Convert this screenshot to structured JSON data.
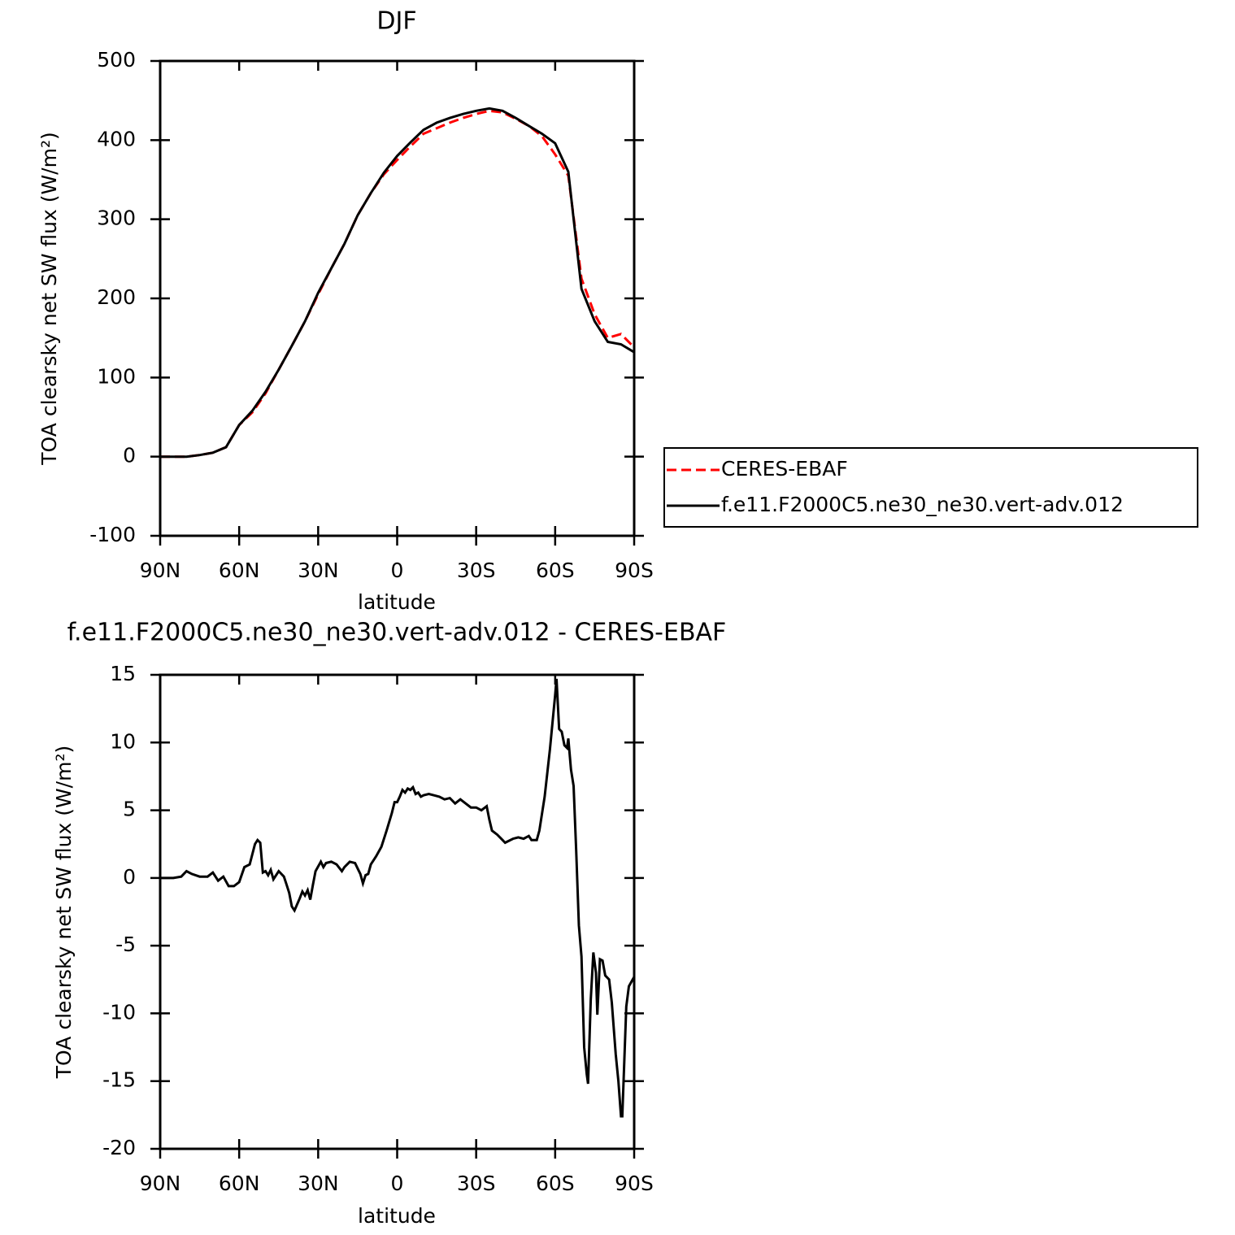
{
  "chart_data": [
    {
      "type": "line",
      "title": "DJF",
      "xlabel": "latitude",
      "ylabel": "TOA clearsky net SW flux (W/m²)",
      "x": [
        90,
        85,
        80,
        75,
        70,
        65,
        60,
        55,
        50,
        45,
        40,
        35,
        30,
        25,
        20,
        15,
        10,
        5,
        0,
        -5,
        -10,
        -15,
        -20,
        -25,
        -30,
        -35,
        -40,
        -45,
        -50,
        -55,
        -60,
        -65,
        -70,
        -75,
        -80,
        -85,
        -90
      ],
      "series": [
        {
          "name": "CERES-EBAF",
          "color": "#ff0000",
          "style": "dashed",
          "values": [
            0,
            0,
            0,
            2,
            5,
            12,
            40,
            56,
            80,
            110,
            140,
            171,
            205,
            238,
            269,
            305,
            333,
            357,
            375,
            392,
            408,
            415,
            422,
            428,
            433,
            437,
            435,
            427,
            418,
            405,
            382,
            355,
            225,
            180,
            150,
            155,
            138
          ]
        },
        {
          "name": "f.e11.F2000C5.ne30_ne30.vert-adv.012",
          "color": "#000000",
          "style": "solid",
          "values": [
            0,
            0,
            0,
            2,
            5,
            12,
            40,
            58,
            82,
            110,
            140,
            171,
            207,
            238,
            269,
            305,
            333,
            359,
            380,
            397,
            413,
            422,
            428,
            433,
            437,
            440,
            437,
            428,
            418,
            408,
            396,
            360,
            212,
            171,
            145,
            142,
            132
          ]
        }
      ],
      "xlim": [
        90,
        -90
      ],
      "xticks": [
        {
          "value": 90,
          "label": "90N"
        },
        {
          "value": 60,
          "label": "60N"
        },
        {
          "value": 30,
          "label": "30N"
        },
        0,
        {
          "value": -30,
          "label": "30S"
        },
        {
          "value": -60,
          "label": "60S"
        },
        {
          "value": -90,
          "label": "90S"
        }
      ],
      "ylim": [
        -100,
        500
      ],
      "yticks": [
        -100,
        0,
        100,
        200,
        300,
        400,
        500
      ],
      "legend": "right"
    },
    {
      "type": "line",
      "title": "f.e11.F2000C5.ne30_ne30.vert-adv.012 - CERES-EBAF",
      "xlabel": "latitude",
      "ylabel": "TOA clearsky net SW flux (W/m²)",
      "x": [
        90,
        85,
        82,
        80,
        78,
        75,
        72,
        70,
        68,
        66,
        64,
        62,
        60,
        58,
        56,
        54,
        53,
        52,
        51,
        50,
        49,
        48,
        47,
        45,
        43,
        42,
        41,
        40,
        39,
        37,
        36,
        35,
        34,
        33,
        32,
        31,
        29,
        28,
        27,
        25,
        23,
        21,
        20,
        18,
        16,
        15,
        14,
        13,
        12,
        11,
        10,
        8,
        6,
        4,
        2,
        1,
        0,
        -1,
        -2,
        -3,
        -4,
        -5,
        -6,
        -7,
        -8,
        -9,
        -10,
        -12,
        -14,
        -16,
        -18,
        -20,
        -22,
        -24,
        -26,
        -28,
        -30,
        -32,
        -34,
        -35,
        -36,
        -38,
        -40,
        -41,
        -42,
        -44,
        -46,
        -48,
        -50,
        -51,
        -53,
        -54,
        -56,
        -58,
        -60,
        -60.5,
        -61.5,
        -62.5,
        -63.5,
        -64.5,
        -65,
        -66,
        -67,
        -68,
        -69,
        -70,
        -71,
        -72,
        -72.5,
        -73.5,
        -74.5,
        -75.5,
        -76,
        -77,
        -78,
        -79,
        -80.5,
        -81.5,
        -83,
        -84,
        -85,
        -85.5,
        -87,
        -88,
        -90
      ],
      "values": [
        0,
        0,
        0.1,
        0.5,
        0.3,
        0.1,
        0.1,
        0.4,
        -0.2,
        0.1,
        -0.6,
        -0.6,
        -0.3,
        0.8,
        1.0,
        2.5,
        2.8,
        2.6,
        0.4,
        0.5,
        0.2,
        0.6,
        -0.1,
        0.5,
        0.1,
        -0.5,
        -1.1,
        -2.1,
        -2.4,
        -1.5,
        -1.0,
        -1.3,
        -0.9,
        -1.6,
        -0.5,
        0.5,
        1.2,
        0.8,
        1.1,
        1.2,
        1.0,
        0.5,
        0.8,
        1.2,
        1.1,
        0.7,
        0.3,
        -0.4,
        0.2,
        0.3,
        1.0,
        1.6,
        2.3,
        3.5,
        4.8,
        5.6,
        5.6,
        6.0,
        6.5,
        6.3,
        6.6,
        6.5,
        6.7,
        6.2,
        6.3,
        6.0,
        6.1,
        6.2,
        6.1,
        6.0,
        5.8,
        5.9,
        5.5,
        5.8,
        5.5,
        5.2,
        5.2,
        5.0,
        5.3,
        4.3,
        3.5,
        3.2,
        2.8,
        2.6,
        2.7,
        2.9,
        3.0,
        2.9,
        3.1,
        2.8,
        2.8,
        3.5,
        6.0,
        9.5,
        13.5,
        14.7,
        11.0,
        10.8,
        9.8,
        9.6,
        10.3,
        8.0,
        6.8,
        2.0,
        -3.5,
        -5.8,
        -12.5,
        -14.5,
        -15.2,
        -9.0,
        -5.5,
        -7.0,
        -10.1,
        -6.0,
        -6.1,
        -7.2,
        -7.5,
        -9.2,
        -13.0,
        -15.0,
        -17.6,
        -17.6,
        -9.5,
        -8.0,
        -7.3
      ],
      "color": "#000000",
      "xlim": [
        90,
        -90
      ],
      "xticks": [
        {
          "value": 90,
          "label": "90N"
        },
        {
          "value": 60,
          "label": "60N"
        },
        {
          "value": 30,
          "label": "30N"
        },
        0,
        {
          "value": -30,
          "label": "30S"
        },
        {
          "value": -60,
          "label": "60S"
        },
        {
          "value": -90,
          "label": "90S"
        }
      ],
      "ylim": [
        -20,
        15
      ],
      "yticks": [
        -20,
        -15,
        -10,
        -5,
        0,
        5,
        10,
        15
      ]
    }
  ]
}
